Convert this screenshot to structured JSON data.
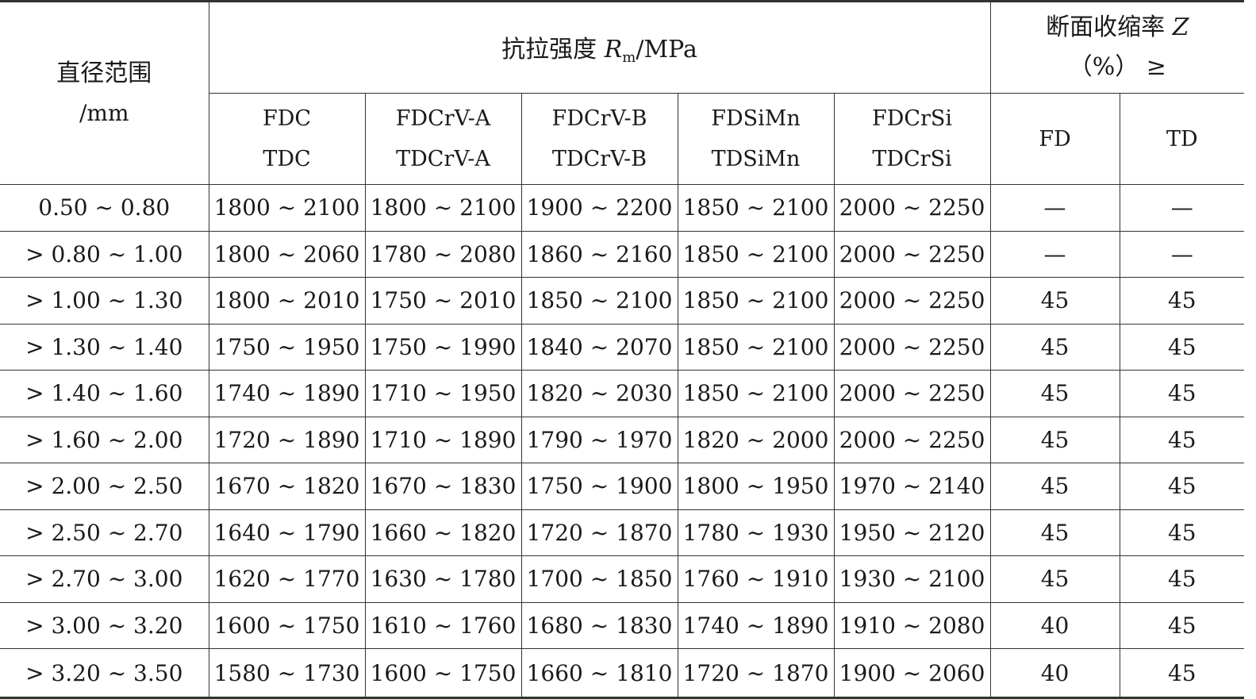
{
  "header": {
    "diameter_label": "直径范围",
    "diameter_unit": "/mm",
    "strength_label": "抗拉强度",
    "strength_symbol": "R",
    "strength_subscript": "m",
    "strength_unit": "/MPa",
    "reduction_label": "断面收缩率",
    "reduction_symbol": "Z",
    "reduction_unit": "（%）  ≥",
    "fd": "FD",
    "td": "TD",
    "grades": [
      {
        "line1": "FDC",
        "line2": "TDC"
      },
      {
        "line1": "FDCrV-A",
        "line2": "TDCrV-A"
      },
      {
        "line1": "FDCrV-B",
        "line2": "TDCrV-B"
      },
      {
        "line1": "FDSiMn",
        "line2": "TDSiMn"
      },
      {
        "line1": "FDCrSi",
        "line2": "TDCrSi"
      }
    ]
  },
  "rows": [
    {
      "d": "0.50 ~ 0.80",
      "v": [
        "1800 ~ 2100",
        "1800 ~ 2100",
        "1900 ~ 2200",
        "1850 ~ 2100",
        "2000 ~ 2250"
      ],
      "fd": "—",
      "td": "—"
    },
    {
      "d": "> 0.80 ~ 1.00",
      "v": [
        "1800 ~ 2060",
        "1780 ~ 2080",
        "1860 ~ 2160",
        "1850 ~ 2100",
        "2000 ~ 2250"
      ],
      "fd": "—",
      "td": "—"
    },
    {
      "d": "> 1.00 ~ 1.30",
      "v": [
        "1800 ~ 2010",
        "1750 ~ 2010",
        "1850 ~ 2100",
        "1850 ~ 2100",
        "2000 ~ 2250"
      ],
      "fd": "45",
      "td": "45"
    },
    {
      "d": "> 1.30 ~ 1.40",
      "v": [
        "1750 ~ 1950",
        "1750 ~ 1990",
        "1840 ~ 2070",
        "1850 ~ 2100",
        "2000 ~ 2250"
      ],
      "fd": "45",
      "td": "45"
    },
    {
      "d": "> 1.40 ~ 1.60",
      "v": [
        "1740 ~ 1890",
        "1710 ~ 1950",
        "1820 ~ 2030",
        "1850 ~ 2100",
        "2000 ~ 2250"
      ],
      "fd": "45",
      "td": "45"
    },
    {
      "d": "> 1.60 ~ 2.00",
      "v": [
        "1720 ~ 1890",
        "1710 ~ 1890",
        "1790 ~ 1970",
        "1820 ~ 2000",
        "2000 ~ 2250"
      ],
      "fd": "45",
      "td": "45"
    },
    {
      "d": "> 2.00 ~ 2.50",
      "v": [
        "1670 ~ 1820",
        "1670 ~ 1830",
        "1750 ~ 1900",
        "1800 ~ 1950",
        "1970 ~ 2140"
      ],
      "fd": "45",
      "td": "45"
    },
    {
      "d": "> 2.50 ~ 2.70",
      "v": [
        "1640 ~ 1790",
        "1660 ~ 1820",
        "1720 ~ 1870",
        "1780 ~ 1930",
        "1950 ~ 2120"
      ],
      "fd": "45",
      "td": "45"
    },
    {
      "d": "> 2.70 ~ 3.00",
      "v": [
        "1620 ~ 1770",
        "1630 ~ 1780",
        "1700 ~ 1850",
        "1760 ~ 1910",
        "1930 ~ 2100"
      ],
      "fd": "45",
      "td": "45"
    },
    {
      "d": "> 3.00 ~ 3.20",
      "v": [
        "1600 ~ 1750",
        "1610 ~ 1760",
        "1680 ~ 1830",
        "1740 ~ 1890",
        "1910 ~ 2080"
      ],
      "fd": "40",
      "td": "45"
    },
    {
      "d": "> 3.20 ~ 3.50",
      "v": [
        "1580 ~ 1730",
        "1600 ~ 1750",
        "1660 ~ 1810",
        "1720 ~ 1870",
        "1900 ~ 2060"
      ],
      "fd": "40",
      "td": "45"
    }
  ]
}
